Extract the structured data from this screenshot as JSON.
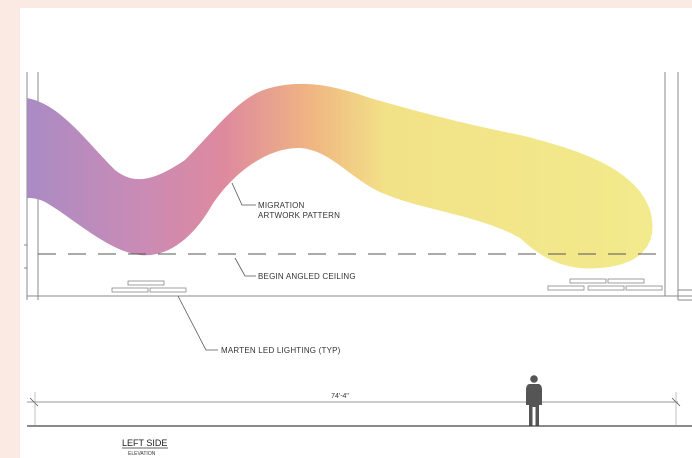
{
  "labels": {
    "artwork_line1": "MIGRATION",
    "artwork_line2": "ARTWORK PATTERN",
    "ceiling": "BEGIN ANGLED CEILING",
    "lighting": "MARTEN LED LIGHTING (TYP)"
  },
  "dimension": {
    "width_label": "74'-4\""
  },
  "title_block": {
    "title": "LEFT SIDE",
    "subtitle": "ELEVATION"
  },
  "colors": {
    "purple": "#a98bc4",
    "pink": "#de8a9e",
    "yellow": "#f2ea8c"
  }
}
